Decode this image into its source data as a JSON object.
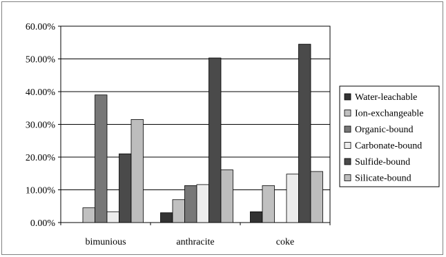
{
  "chart_data": {
    "type": "bar",
    "categories": [
      "bimunious",
      "anthracite",
      "coke"
    ],
    "series": [
      {
        "name": "Water-leachable",
        "color": "#333333",
        "values": [
          0,
          3.0,
          3.3
        ]
      },
      {
        "name": "Ion-exchangeable",
        "color": "#c0c0c0",
        "values": [
          4.5,
          7.0,
          11.3
        ]
      },
      {
        "name": "Organic-bound",
        "color": "#777777",
        "values": [
          39.0,
          11.3,
          0
        ]
      },
      {
        "name": "Carbonate-bound",
        "color": "#ececec",
        "values": [
          3.3,
          11.6,
          14.8
        ]
      },
      {
        "name": "Sulfide-bound",
        "color": "#4a4a4a",
        "values": [
          21.0,
          50.3,
          54.5
        ]
      },
      {
        "name": "Silicate-bound",
        "color": "#bdbdbd",
        "values": [
          31.5,
          16.1,
          15.6
        ]
      }
    ],
    "ylim": [
      0,
      60
    ],
    "yticks": [
      "0.00%",
      "10.00%",
      "20.00%",
      "30.00%",
      "40.00%",
      "50.00%",
      "60.00%"
    ],
    "grid": true,
    "legend_position": "right",
    "title": "",
    "xlabel": "",
    "ylabel": ""
  }
}
